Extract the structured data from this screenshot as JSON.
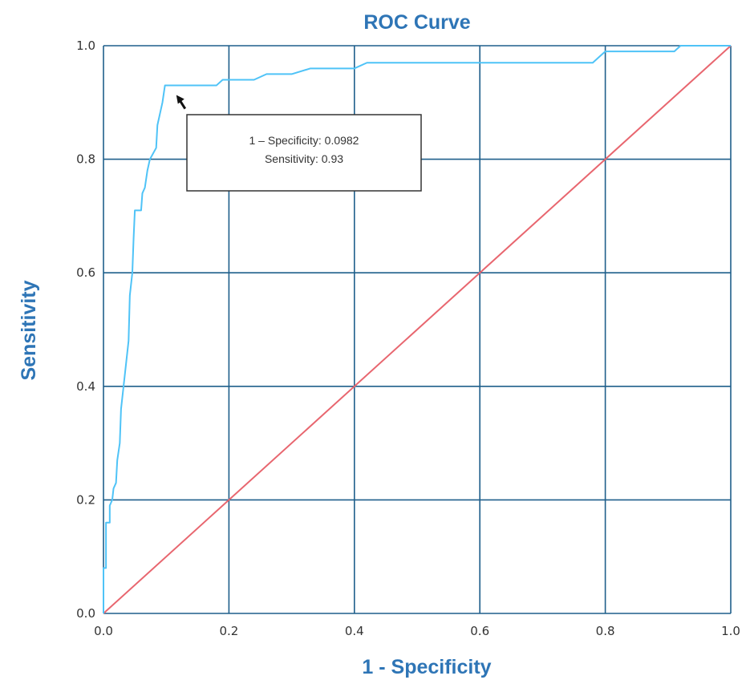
{
  "chart_data": {
    "type": "line",
    "title": "ROC Curve",
    "xlabel": "1 - Specificity",
    "ylabel": "Sensitivity",
    "xlim": [
      0,
      1
    ],
    "ylim": [
      0,
      1
    ],
    "x_ticks": [
      "0.0",
      "0.2",
      "0.4",
      "0.6",
      "0.8",
      "1.0"
    ],
    "y_ticks": [
      "0.0",
      "0.2",
      "0.4",
      "0.6",
      "0.8",
      "1.0"
    ],
    "grid": true,
    "series": [
      {
        "color": "#4fc3f7",
        "points": [
          [
            0,
            0
          ],
          [
            0,
            0.08
          ],
          [
            0.004,
            0.08
          ],
          [
            0.004,
            0.16
          ],
          [
            0.01,
            0.16
          ],
          [
            0.01,
            0.19
          ],
          [
            0.014,
            0.2
          ],
          [
            0.016,
            0.22
          ],
          [
            0.02,
            0.23
          ],
          [
            0.022,
            0.27
          ],
          [
            0.026,
            0.3
          ],
          [
            0.028,
            0.36
          ],
          [
            0.032,
            0.4
          ],
          [
            0.036,
            0.44
          ],
          [
            0.04,
            0.48
          ],
          [
            0.042,
            0.56
          ],
          [
            0.046,
            0.6
          ],
          [
            0.048,
            0.66
          ],
          [
            0.05,
            0.71
          ],
          [
            0.06,
            0.71
          ],
          [
            0.062,
            0.74
          ],
          [
            0.066,
            0.75
          ],
          [
            0.07,
            0.78
          ],
          [
            0.074,
            0.8
          ],
          [
            0.084,
            0.82
          ],
          [
            0.086,
            0.86
          ],
          [
            0.09,
            0.88
          ],
          [
            0.094,
            0.9
          ],
          [
            0.098,
            0.93
          ],
          [
            0.14,
            0.93
          ],
          [
            0.18,
            0.93
          ],
          [
            0.19,
            0.94
          ],
          [
            0.24,
            0.94
          ],
          [
            0.26,
            0.95
          ],
          [
            0.3,
            0.95
          ],
          [
            0.33,
            0.96
          ],
          [
            0.4,
            0.96
          ],
          [
            0.42,
            0.97
          ],
          [
            0.78,
            0.97
          ],
          [
            0.79,
            0.98
          ],
          [
            0.8,
            0.99
          ],
          [
            0.91,
            0.99
          ],
          [
            0.92,
            1.0
          ],
          [
            1.0,
            1.0
          ]
        ]
      },
      {
        "color": "#e8666f",
        "points": [
          [
            0,
            0
          ],
          [
            1,
            1
          ]
        ]
      }
    ],
    "annotation": {
      "x": 0.0982,
      "y": 0.93,
      "line1": "1 – Specificity: 0.0982",
      "line2": "Sensitivity: 0.93"
    }
  },
  "colors": {
    "grid": "#1f5f8b",
    "title": "#2e75b6",
    "roc": "#4fc3f7",
    "diagonal": "#e8666f"
  }
}
